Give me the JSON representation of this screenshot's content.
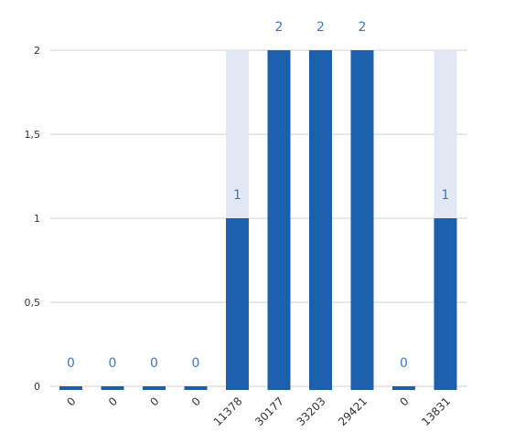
{
  "chart_data": {
    "type": "bar",
    "title": "",
    "xlabel": "",
    "ylabel": "",
    "categories": [
      "0",
      "0",
      "0",
      "0",
      "11378",
      "30177",
      "33203",
      "29421",
      "0",
      "13831"
    ],
    "values": [
      0,
      0,
      0,
      0,
      1,
      2,
      2,
      2,
      0,
      1
    ],
    "max_values": [
      0,
      0,
      0,
      0,
      2,
      2,
      2,
      2,
      0,
      2
    ],
    "ylim": [
      0,
      2
    ],
    "yticks": [
      0,
      0.5,
      1,
      1.5,
      2
    ],
    "ytick_labels": [
      "0",
      "0,5",
      "1",
      "1,5",
      "2"
    ],
    "data_labels": [
      "0",
      "0",
      "0",
      "0",
      "1",
      "2",
      "2",
      "2",
      "0",
      "1"
    ],
    "grid": true,
    "colors": {
      "bar": "#1b5fad",
      "bar_background": "#e1e8f4",
      "label": "#3a78c2",
      "grid": "#d0d0d0",
      "axis_text": "#333333"
    }
  }
}
